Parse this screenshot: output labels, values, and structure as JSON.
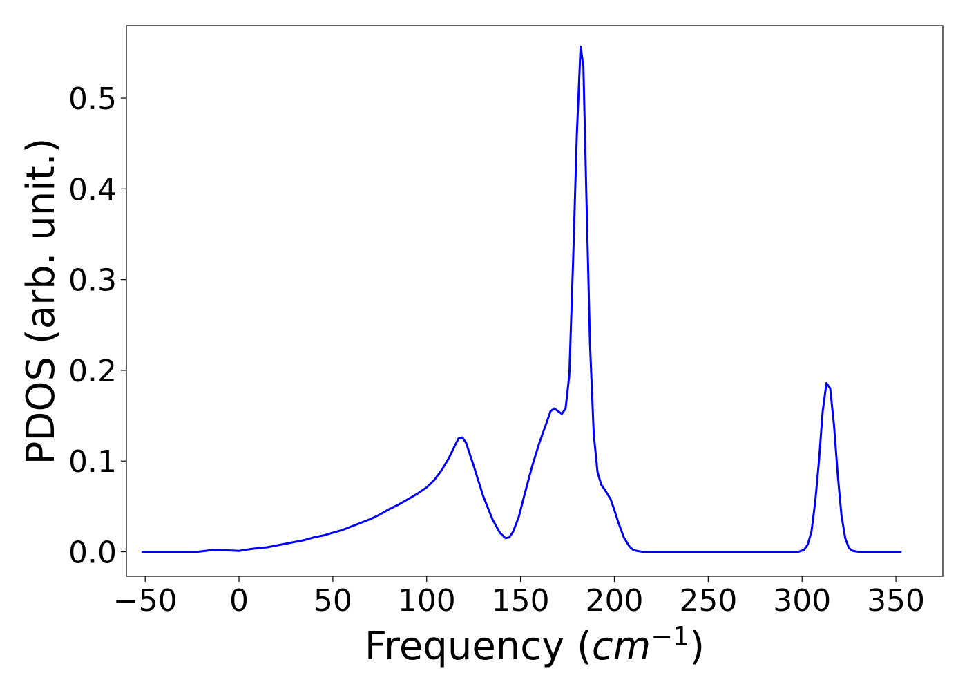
{
  "chart_data": {
    "type": "line",
    "title": "",
    "xlabel": "Frequency (",
    "xlabel_math": "cm",
    "xlabel_superscript": "−1",
    "xlabel_suffix": ")",
    "ylabel": "PDOS (arb. unit.)",
    "xlim": [
      -60,
      375
    ],
    "ylim": [
      -0.027,
      0.58
    ],
    "xticks": [
      -50,
      0,
      50,
      100,
      150,
      200,
      250,
      300,
      350
    ],
    "xtick_labels": [
      "−50",
      "0",
      "50",
      "100",
      "150",
      "200",
      "250",
      "300",
      "350"
    ],
    "yticks": [
      0.0,
      0.1,
      0.2,
      0.3,
      0.4,
      0.5
    ],
    "ytick_labels": [
      "0.0",
      "0.1",
      "0.2",
      "0.3",
      "0.4",
      "0.5"
    ],
    "grid": false,
    "legend": "none",
    "series": [
      {
        "color": "#0000ff",
        "x": [
          -52,
          -40,
          -30,
          -22,
          -18,
          -14,
          -10,
          -5,
          0,
          3,
          6,
          10,
          15,
          20,
          25,
          30,
          35,
          40,
          45,
          50,
          55,
          60,
          65,
          70,
          75,
          80,
          85,
          90,
          95,
          100,
          104,
          108,
          112,
          115,
          117,
          119,
          121,
          125,
          130,
          135,
          139,
          142,
          144,
          146,
          149,
          152,
          156,
          160,
          164,
          166,
          168,
          170,
          172,
          174,
          176,
          178,
          180,
          182,
          183.5,
          185,
          187,
          189,
          191,
          193,
          195,
          198,
          200,
          202,
          205,
          208,
          210,
          212,
          215,
          218,
          225,
          250,
          280,
          298,
          301,
          303,
          305,
          307,
          309,
          311,
          313,
          315,
          317,
          319,
          321,
          323,
          325,
          327,
          330,
          340,
          353
        ],
        "y": [
          0.0,
          0.0,
          0.0,
          0.0,
          0.001,
          0.002,
          0.002,
          0.0015,
          0.001,
          0.002,
          0.003,
          0.004,
          0.005,
          0.007,
          0.009,
          0.011,
          0.013,
          0.016,
          0.018,
          0.021,
          0.024,
          0.028,
          0.032,
          0.036,
          0.041,
          0.047,
          0.052,
          0.058,
          0.064,
          0.071,
          0.079,
          0.09,
          0.104,
          0.117,
          0.125,
          0.126,
          0.12,
          0.095,
          0.062,
          0.036,
          0.021,
          0.015,
          0.016,
          0.022,
          0.038,
          0.062,
          0.093,
          0.12,
          0.143,
          0.155,
          0.158,
          0.155,
          0.152,
          0.158,
          0.195,
          0.32,
          0.46,
          0.557,
          0.535,
          0.4,
          0.23,
          0.13,
          0.088,
          0.074,
          0.068,
          0.058,
          0.046,
          0.033,
          0.016,
          0.006,
          0.002,
          0.001,
          0.0,
          0.0,
          0.0,
          0.0,
          0.0,
          0.0,
          0.002,
          0.008,
          0.022,
          0.055,
          0.1,
          0.155,
          0.186,
          0.18,
          0.14,
          0.085,
          0.04,
          0.015,
          0.004,
          0.001,
          0.0,
          0.0,
          0.0
        ]
      }
    ]
  }
}
